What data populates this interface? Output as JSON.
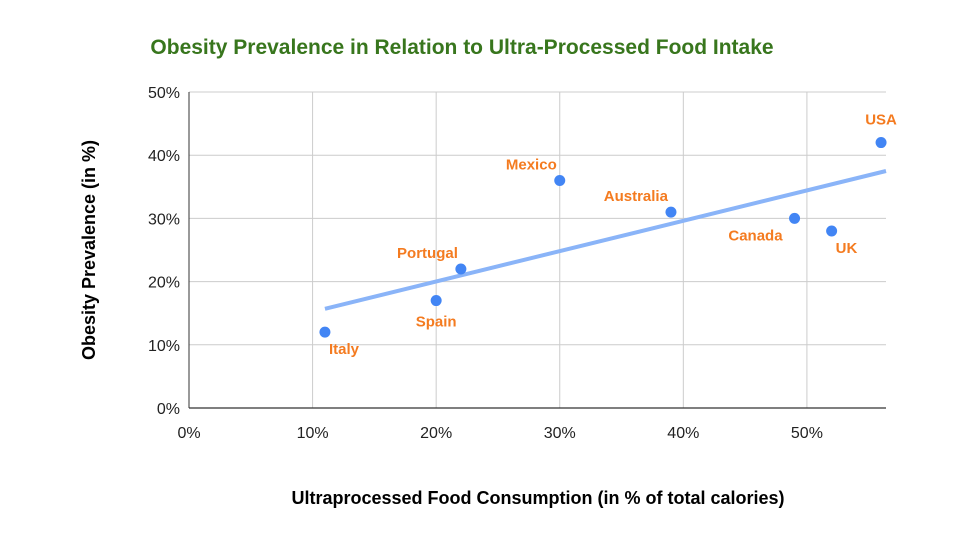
{
  "chart_data": {
    "type": "scatter",
    "title": "Obesity Prevalence in Relation to Ultra-Processed Food Intake",
    "xlabel": "Ultraprocessed Food Consumption (in % of total calories)",
    "ylabel": "Obesity Prevalence (in %)",
    "xlim": [
      0,
      56.4
    ],
    "ylim": [
      0,
      50
    ],
    "x_ticks": [
      0,
      10,
      20,
      30,
      40,
      50
    ],
    "x_tick_labels": [
      "0%",
      "10%",
      "20%",
      "30%",
      "40%",
      "50%"
    ],
    "y_ticks": [
      0,
      10,
      20,
      30,
      40,
      50
    ],
    "y_tick_labels": [
      "0%",
      "10%",
      "20%",
      "30%",
      "40%",
      "50%"
    ],
    "grid": true,
    "legend": "none",
    "points": [
      {
        "label": "Italy",
        "x": 11,
        "y": 12,
        "label_pos": "below-right"
      },
      {
        "label": "Spain",
        "x": 20,
        "y": 17,
        "label_pos": "below"
      },
      {
        "label": "Portugal",
        "x": 22,
        "y": 22,
        "label_pos": "above-left"
      },
      {
        "label": "Mexico",
        "x": 30,
        "y": 36,
        "label_pos": "above-left"
      },
      {
        "label": "Australia",
        "x": 39,
        "y": 31,
        "label_pos": "above-left"
      },
      {
        "label": "Canada",
        "x": 49,
        "y": 30,
        "label_pos": "below-left"
      },
      {
        "label": "UK",
        "x": 52,
        "y": 28,
        "label_pos": "below-right"
      },
      {
        "label": "USA",
        "x": 56,
        "y": 42,
        "label_pos": "above"
      }
    ],
    "trendline": {
      "type": "linear",
      "x_start": 11,
      "y_start": 15.7,
      "x_end": 56.4,
      "y_end": 37.5
    },
    "colors": {
      "point": "#4285f4",
      "trendline": "#8ab4f8",
      "label": "#f47b20",
      "title": "#38761d"
    }
  }
}
